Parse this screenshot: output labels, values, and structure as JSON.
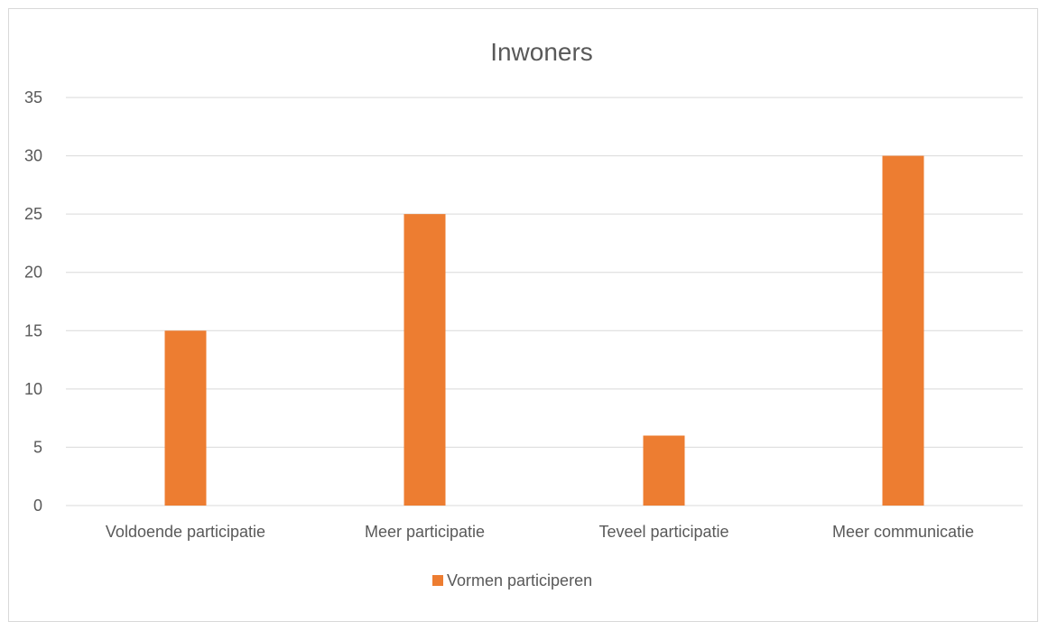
{
  "chart_data": {
    "type": "bar",
    "title": "Inwoners",
    "xlabel": "",
    "ylabel": "",
    "categories": [
      "Voldoende participatie",
      "Meer participatie",
      "Teveel participatie",
      "Meer communicatie"
    ],
    "series": [
      {
        "name": "Vormen participeren",
        "values": [
          15,
          25,
          6,
          30
        ],
        "color": "#ED7D31"
      }
    ],
    "ylim": [
      0,
      35
    ],
    "yticks": [
      "0",
      "5",
      "10",
      "15",
      "20",
      "25",
      "30",
      "35"
    ],
    "grid": true,
    "legend_position": "bottom",
    "colors": {
      "bar": "#ED7D31",
      "grid": "#d9d9d9",
      "text": "#595959"
    }
  }
}
